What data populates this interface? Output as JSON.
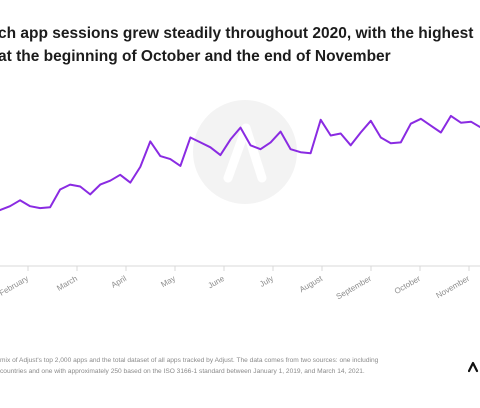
{
  "title_line1": "ch app sessions grew steadily throughout 2020, with the highest",
  "title_line2": "at the beginning of October and the end of November",
  "footnote_line1": "mix of Adjust's top 2,000 apps and the total dataset of all apps tracked by Adjust. The data comes from two sources: one including",
  "footnote_line2": "countries and one with approximately 250 based on the ISO 3166-1 standard between January 1, 2019, and March 14, 2021.",
  "colors": {
    "line": "#8a2be2",
    "axis": "#d9d9d9",
    "tick_label": "#8c8c8c",
    "watermark": "#f3f3f3"
  },
  "icons": {
    "watermark": "adjust-logo-watermark",
    "brand": "adjust-brand-mark"
  },
  "chart_data": {
    "type": "line",
    "title": "",
    "xlabel": "",
    "ylabel": "",
    "categories": [
      "February",
      "March",
      "April",
      "May",
      "June",
      "July",
      "August",
      "September",
      "October",
      "November"
    ],
    "x": [
      0,
      1,
      2,
      3,
      4,
      5,
      6,
      7,
      8,
      9,
      10,
      11,
      12,
      13,
      14,
      15,
      16,
      17,
      18,
      19,
      20,
      21,
      22,
      23,
      24,
      25,
      26,
      27,
      28,
      29,
      30,
      31,
      32,
      33,
      34,
      35,
      36,
      37,
      38,
      39,
      40,
      41,
      42,
      43,
      44,
      45,
      46,
      47,
      48,
      49
    ],
    "values": [
      6,
      10,
      16,
      10,
      8,
      9,
      27,
      32,
      30,
      22,
      32,
      36,
      42,
      34,
      50,
      76,
      61,
      58,
      51,
      80,
      75,
      70,
      62,
      78,
      90,
      72,
      68,
      75,
      86,
      68,
      65,
      64,
      98,
      82,
      84,
      72,
      85,
      97,
      80,
      74,
      75,
      94,
      99,
      92,
      85,
      102,
      95,
      96,
      90,
      92
    ],
    "ylim": [
      0,
      110
    ],
    "grid": false,
    "legend": "none"
  }
}
